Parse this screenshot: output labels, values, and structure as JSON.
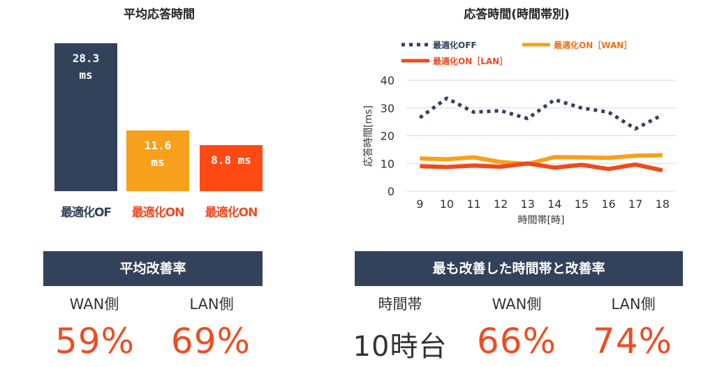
{
  "colors": {
    "dark": "#32425a",
    "orange": "#f7a01b",
    "red": "#f04a1c",
    "red_text": "#ef4c22"
  },
  "left_chart": {
    "chart_data": {
      "type": "bar",
      "title": "平均応答時間",
      "categories": [
        "最適化OF",
        "最適化ON",
        "最適化ON"
      ],
      "values": [
        28.3,
        11.6,
        8.8
      ],
      "value_labels": [
        "28.3\nms",
        "11.6\nms",
        "8.8 ms"
      ],
      "colors": [
        "#32425a",
        "#f7a01b",
        "#ff4a14"
      ],
      "category_colors": [
        "#32425a",
        "#ef4c22",
        "#ef4c22"
      ],
      "ylim": [
        0,
        28.3
      ]
    }
  },
  "right_chart": {
    "chart_data": {
      "type": "line",
      "title": "応答時間(時間帯別)",
      "xlabel": "時間帯[時]",
      "ylabel": "応答時間[ms]",
      "x": [
        9,
        10,
        11,
        12,
        13,
        14,
        15,
        16,
        17,
        18
      ],
      "ylim": [
        0,
        40
      ],
      "yticks": [
        0,
        10,
        20,
        30,
        40
      ],
      "legend": "top",
      "series": [
        {
          "name": "最適化OFF",
          "style": "dotted",
          "color": "#32425a",
          "values": [
            26.5,
            33.5,
            28.5,
            29,
            26.2,
            33,
            30,
            28.5,
            22.5,
            27.5
          ]
        },
        {
          "name": "最適化ON［WAN］",
          "style": "solid",
          "color": "#f7a01b",
          "values": [
            11.8,
            11.5,
            12.2,
            10.5,
            9.8,
            12.3,
            12.2,
            12,
            12.8,
            13
          ]
        },
        {
          "name": "最適化ON［LAN］",
          "style": "solid",
          "color": "#f04a1c",
          "values": [
            9,
            8.7,
            9.2,
            8.8,
            10,
            8.5,
            9.5,
            8,
            9.6,
            7.5
          ]
        }
      ]
    }
  },
  "avg_improvement": {
    "title": "平均改善率",
    "wan_label": "WAN側",
    "wan_value": "59%",
    "lan_label": "LAN側",
    "lan_value": "69%"
  },
  "best_improvement": {
    "title": "最も改善した時間帯と改善率",
    "time_label": "時間帯",
    "time_value": "10時台",
    "wan_label": "WAN側",
    "wan_value": "66%",
    "lan_label": "LAN側",
    "lan_value": "74%"
  }
}
